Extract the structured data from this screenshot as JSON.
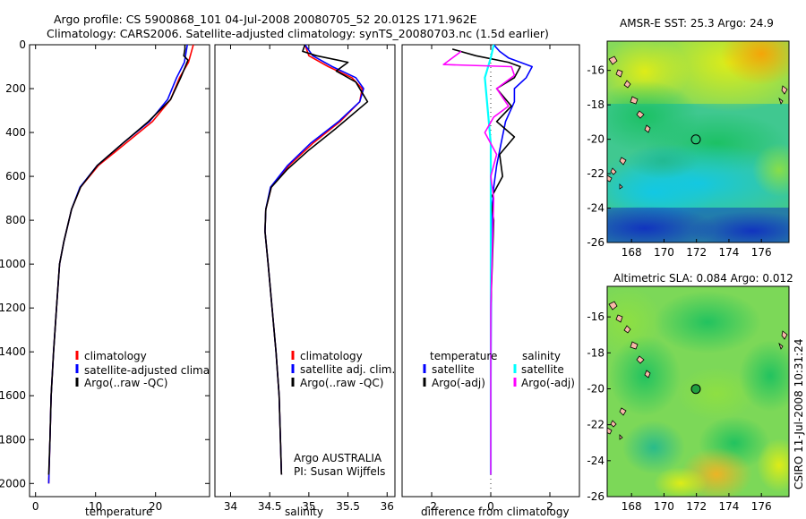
{
  "header": {
    "line1": "Argo profile: CS 5900868_101 04-Jul-2008 20080705_52 20.012S 171.962E",
    "line2": "Climatology: CARS2006. Satellite-adjusted climatology: synTS_20080703.nc (1.5d earlier)"
  },
  "side_label": "CSIRO 11-Jul-2008 10:31:24",
  "credit": {
    "line1": "Argo AUSTRALIA",
    "line2": "PI: Susan Wijffels"
  },
  "colors": {
    "red": "#ff0000",
    "blue": "#0000ff",
    "black": "#000000",
    "cyan": "#00ffff",
    "magenta": "#ff00ff"
  },
  "chart_data": [
    {
      "type": "line",
      "xlabel": "temperature",
      "ylabel": "",
      "xlim": [
        -1,
        29
      ],
      "ylim": [
        2060,
        0
      ],
      "xticks": [
        0,
        10,
        20
      ],
      "yticks": [
        0,
        200,
        400,
        600,
        800,
        1000,
        1200,
        1400,
        1600,
        1800,
        2000
      ],
      "legend": [
        "climatology",
        "satellite-adjusted climatology",
        "Argo(..raw -QC)"
      ],
      "series": [
        {
          "name": "climatology",
          "color": "#ff0000",
          "x": [
            26.3,
            25.5,
            24.0,
            22.5,
            19.5,
            15.0,
            10.5,
            7.5,
            6.0,
            4.7,
            4.0,
            3.5,
            3.0,
            2.6,
            2.4,
            2.2
          ],
          "y": [
            0,
            80,
            150,
            250,
            350,
            450,
            550,
            650,
            750,
            900,
            1000,
            1200,
            1400,
            1600,
            1800,
            2000
          ]
        },
        {
          "name": "satellite-adjusted climatology",
          "color": "#0000ff",
          "x": [
            25.3,
            24.8,
            23.5,
            22.0,
            19.0,
            14.5,
            10.3,
            7.4,
            6.0,
            4.7,
            4.0,
            3.5,
            3.0,
            2.6,
            2.4,
            2.2
          ],
          "y": [
            0,
            80,
            150,
            250,
            350,
            450,
            550,
            650,
            750,
            900,
            1000,
            1200,
            1400,
            1600,
            1800,
            2000
          ]
        },
        {
          "name": "Argo(..raw -QC)",
          "color": "#000000",
          "x": [
            24.9,
            24.9,
            24.7,
            25.4,
            24.2,
            22.5,
            18.8,
            14.5,
            10.3,
            7.5,
            6.0,
            4.7,
            4.0,
            3.5,
            3.0,
            2.6,
            2.4,
            2.2
          ],
          "y": [
            0,
            20,
            50,
            70,
            150,
            250,
            350,
            450,
            550,
            650,
            750,
            900,
            1000,
            1200,
            1400,
            1600,
            1800,
            1960
          ]
        }
      ]
    },
    {
      "type": "line",
      "xlabel": "salinity",
      "ylabel": "",
      "xlim": [
        33.8,
        36.1
      ],
      "ylim": [
        2060,
        0
      ],
      "xticks": [
        34,
        34.5,
        35,
        35.5,
        36
      ],
      "yticks": [],
      "legend": [
        "climatology",
        "satellite adj. clim.",
        "Argo(..raw -QC)"
      ],
      "series": [
        {
          "name": "climatology",
          "color": "#ff0000",
          "x": [
            34.95,
            35.0,
            35.25,
            35.55,
            35.68,
            35.65,
            35.4,
            35.05,
            34.75,
            34.52,
            34.45,
            34.44,
            34.48,
            34.53,
            34.58,
            34.62,
            34.65
          ],
          "y": [
            0,
            50,
            100,
            150,
            200,
            260,
            350,
            450,
            550,
            650,
            750,
            850,
            1000,
            1200,
            1400,
            1600,
            1960
          ]
        },
        {
          "name": "satellite adj. clim.",
          "color": "#0000ff",
          "x": [
            34.95,
            35.05,
            35.3,
            35.6,
            35.7,
            35.65,
            35.38,
            35.02,
            34.73,
            34.51,
            34.45,
            34.44,
            34.48,
            34.53,
            34.58,
            34.62,
            34.65
          ],
          "y": [
            0,
            50,
            100,
            150,
            200,
            260,
            350,
            450,
            550,
            650,
            750,
            850,
            1000,
            1200,
            1400,
            1600,
            1960
          ]
        },
        {
          "name": "Argo(..raw -QC)",
          "color": "#000000",
          "x": [
            34.95,
            34.92,
            35.1,
            35.5,
            35.35,
            35.6,
            35.75,
            35.35,
            35.0,
            34.72,
            34.52,
            34.45,
            34.44,
            34.48,
            34.53,
            34.58,
            34.62,
            34.65
          ],
          "y": [
            0,
            30,
            50,
            80,
            120,
            170,
            260,
            380,
            480,
            570,
            650,
            750,
            850,
            1000,
            1200,
            1400,
            1600,
            1960
          ]
        }
      ]
    },
    {
      "type": "line",
      "xlabel": "difference from climatology",
      "ylabel": "",
      "xlim": [
        -3,
        3
      ],
      "ylim": [
        2060,
        0
      ],
      "xticks": [
        -2,
        0,
        2
      ],
      "yticks": [],
      "legend": [
        "satellite",
        "Argo(-adj)",
        "satellite",
        "Argo(-adj)"
      ],
      "legend_headers": [
        "temperature",
        "salinity"
      ],
      "series": [
        {
          "name": "satellite",
          "color": "#0000ff",
          "x": [
            0.1,
            0.3,
            0.6,
            1.0,
            1.4,
            1.2,
            0.8,
            0.8,
            0.5,
            0.35,
            0.2,
            0.1,
            0.05,
            0.02,
            0.01,
            0.0,
            0.0
          ],
          "y": [
            0,
            30,
            60,
            80,
            100,
            150,
            200,
            260,
            350,
            450,
            550,
            650,
            750,
            1000,
            1400,
            1800,
            1960
          ]
        },
        {
          "name": "Argo(-adj)",
          "color": "#000000",
          "x": [
            -1.3,
            -0.5,
            0.6,
            1.0,
            0.8,
            0.2,
            0.7,
            0.2,
            0.8,
            0.3,
            0.4,
            0.0,
            0.1,
            0.0,
            0.0,
            0.0
          ],
          "y": [
            20,
            50,
            80,
            100,
            150,
            200,
            280,
            350,
            420,
            500,
            600,
            700,
            800,
            1200,
            1600,
            1960
          ]
        },
        {
          "name": "satellite",
          "color": "#00ffff",
          "x": [
            0.1,
            0.0,
            -0.2,
            -0.1,
            0.0,
            0.0,
            0.0,
            0.0,
            0.0,
            0.0
          ],
          "y": [
            0,
            60,
            150,
            300,
            450,
            600,
            800,
            1200,
            1600,
            1960
          ]
        },
        {
          "name": "Argo(-adj)",
          "color": "#ff00ff",
          "x": [
            -1.0,
            -1.6,
            0.7,
            0.8,
            0.2,
            0.6,
            0.1,
            -0.2,
            0.2,
            0.0,
            0.1,
            0.0,
            0.0
          ],
          "y": [
            30,
            90,
            100,
            140,
            200,
            280,
            330,
            400,
            500,
            600,
            700,
            1200,
            1960
          ]
        }
      ]
    },
    {
      "type": "heatmap",
      "title": "AMSR-E SST: 25.3 Argo: 24.9",
      "xlim": [
        166.5,
        177.7
      ],
      "ylim": [
        -26,
        -14.3
      ],
      "xticks": [
        168,
        170,
        172,
        174,
        176
      ],
      "yticks": [
        -16,
        -18,
        -20,
        -22,
        -24,
        -26
      ],
      "marker": {
        "x": 171.962,
        "y": -20.012
      }
    },
    {
      "type": "heatmap",
      "title": "Altimetric SLA: 0.084 Argo: 0.012",
      "xlim": [
        166.5,
        177.7
      ],
      "ylim": [
        -26,
        -14.3
      ],
      "xticks": [
        168,
        170,
        172,
        174,
        176
      ],
      "yticks": [
        -16,
        -18,
        -20,
        -22,
        -24,
        -26
      ],
      "marker": {
        "x": 171.962,
        "y": -20.012
      }
    }
  ]
}
